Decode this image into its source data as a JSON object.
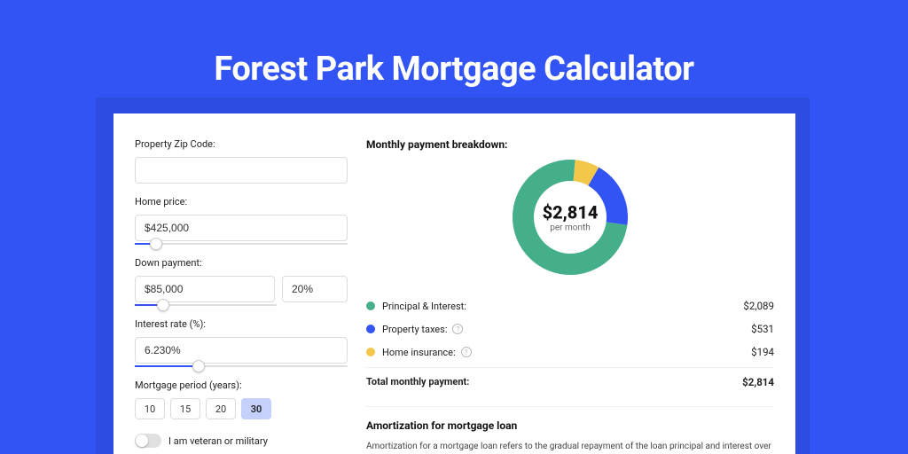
{
  "colors": {
    "page_bg": "#3254f4",
    "inner_band": "#2d4de0",
    "card_bg": "#ffffff",
    "pi": "#45af8a",
    "tax": "#3254f4",
    "ins": "#f3c84a",
    "slider_track": "#e0e0e0",
    "slider_fill": "#3254f4",
    "period_selected_bg": "#c5d0fb"
  },
  "title": "Forest Park Mortgage Calculator",
  "form": {
    "zip_label": "Property Zip Code:",
    "zip_value": "",
    "home_price_label": "Home price:",
    "home_price_value": "$425,000",
    "home_price_slider_pct": 10,
    "down_payment_label": "Down payment:",
    "down_payment_value": "$85,000",
    "down_payment_pct_value": "20%",
    "down_payment_slider_pct": 20,
    "interest_label": "Interest rate (%):",
    "interest_value": "6.230%",
    "interest_slider_pct": 30,
    "period_label": "Mortgage period (years):",
    "periods": [
      "10",
      "15",
      "20",
      "30"
    ],
    "period_selected_index": 3,
    "veteran_label": "I am veteran or military",
    "veteran_checked": false
  },
  "breakdown": {
    "title": "Monthly payment breakdown:",
    "amount": "$2,814",
    "sub": "per month",
    "donut": {
      "size": 130,
      "thickness": 24,
      "slices": [
        {
          "label": "Principal & Interest:",
          "value": "$2,089",
          "pct": 74.24,
          "color": "#45af8a",
          "help": false
        },
        {
          "label": "Property taxes:",
          "value": "$531",
          "pct": 18.87,
          "color": "#3254f4",
          "help": true
        },
        {
          "label": "Home insurance:",
          "value": "$194",
          "pct": 6.89,
          "color": "#f3c84a",
          "help": true
        }
      ]
    },
    "total_label": "Total monthly payment:",
    "total_value": "$2,814"
  },
  "amort": {
    "title": "Amortization for mortgage loan",
    "text": "Amortization for a mortgage loan refers to the gradual repayment of the loan principal and interest over a specified"
  }
}
